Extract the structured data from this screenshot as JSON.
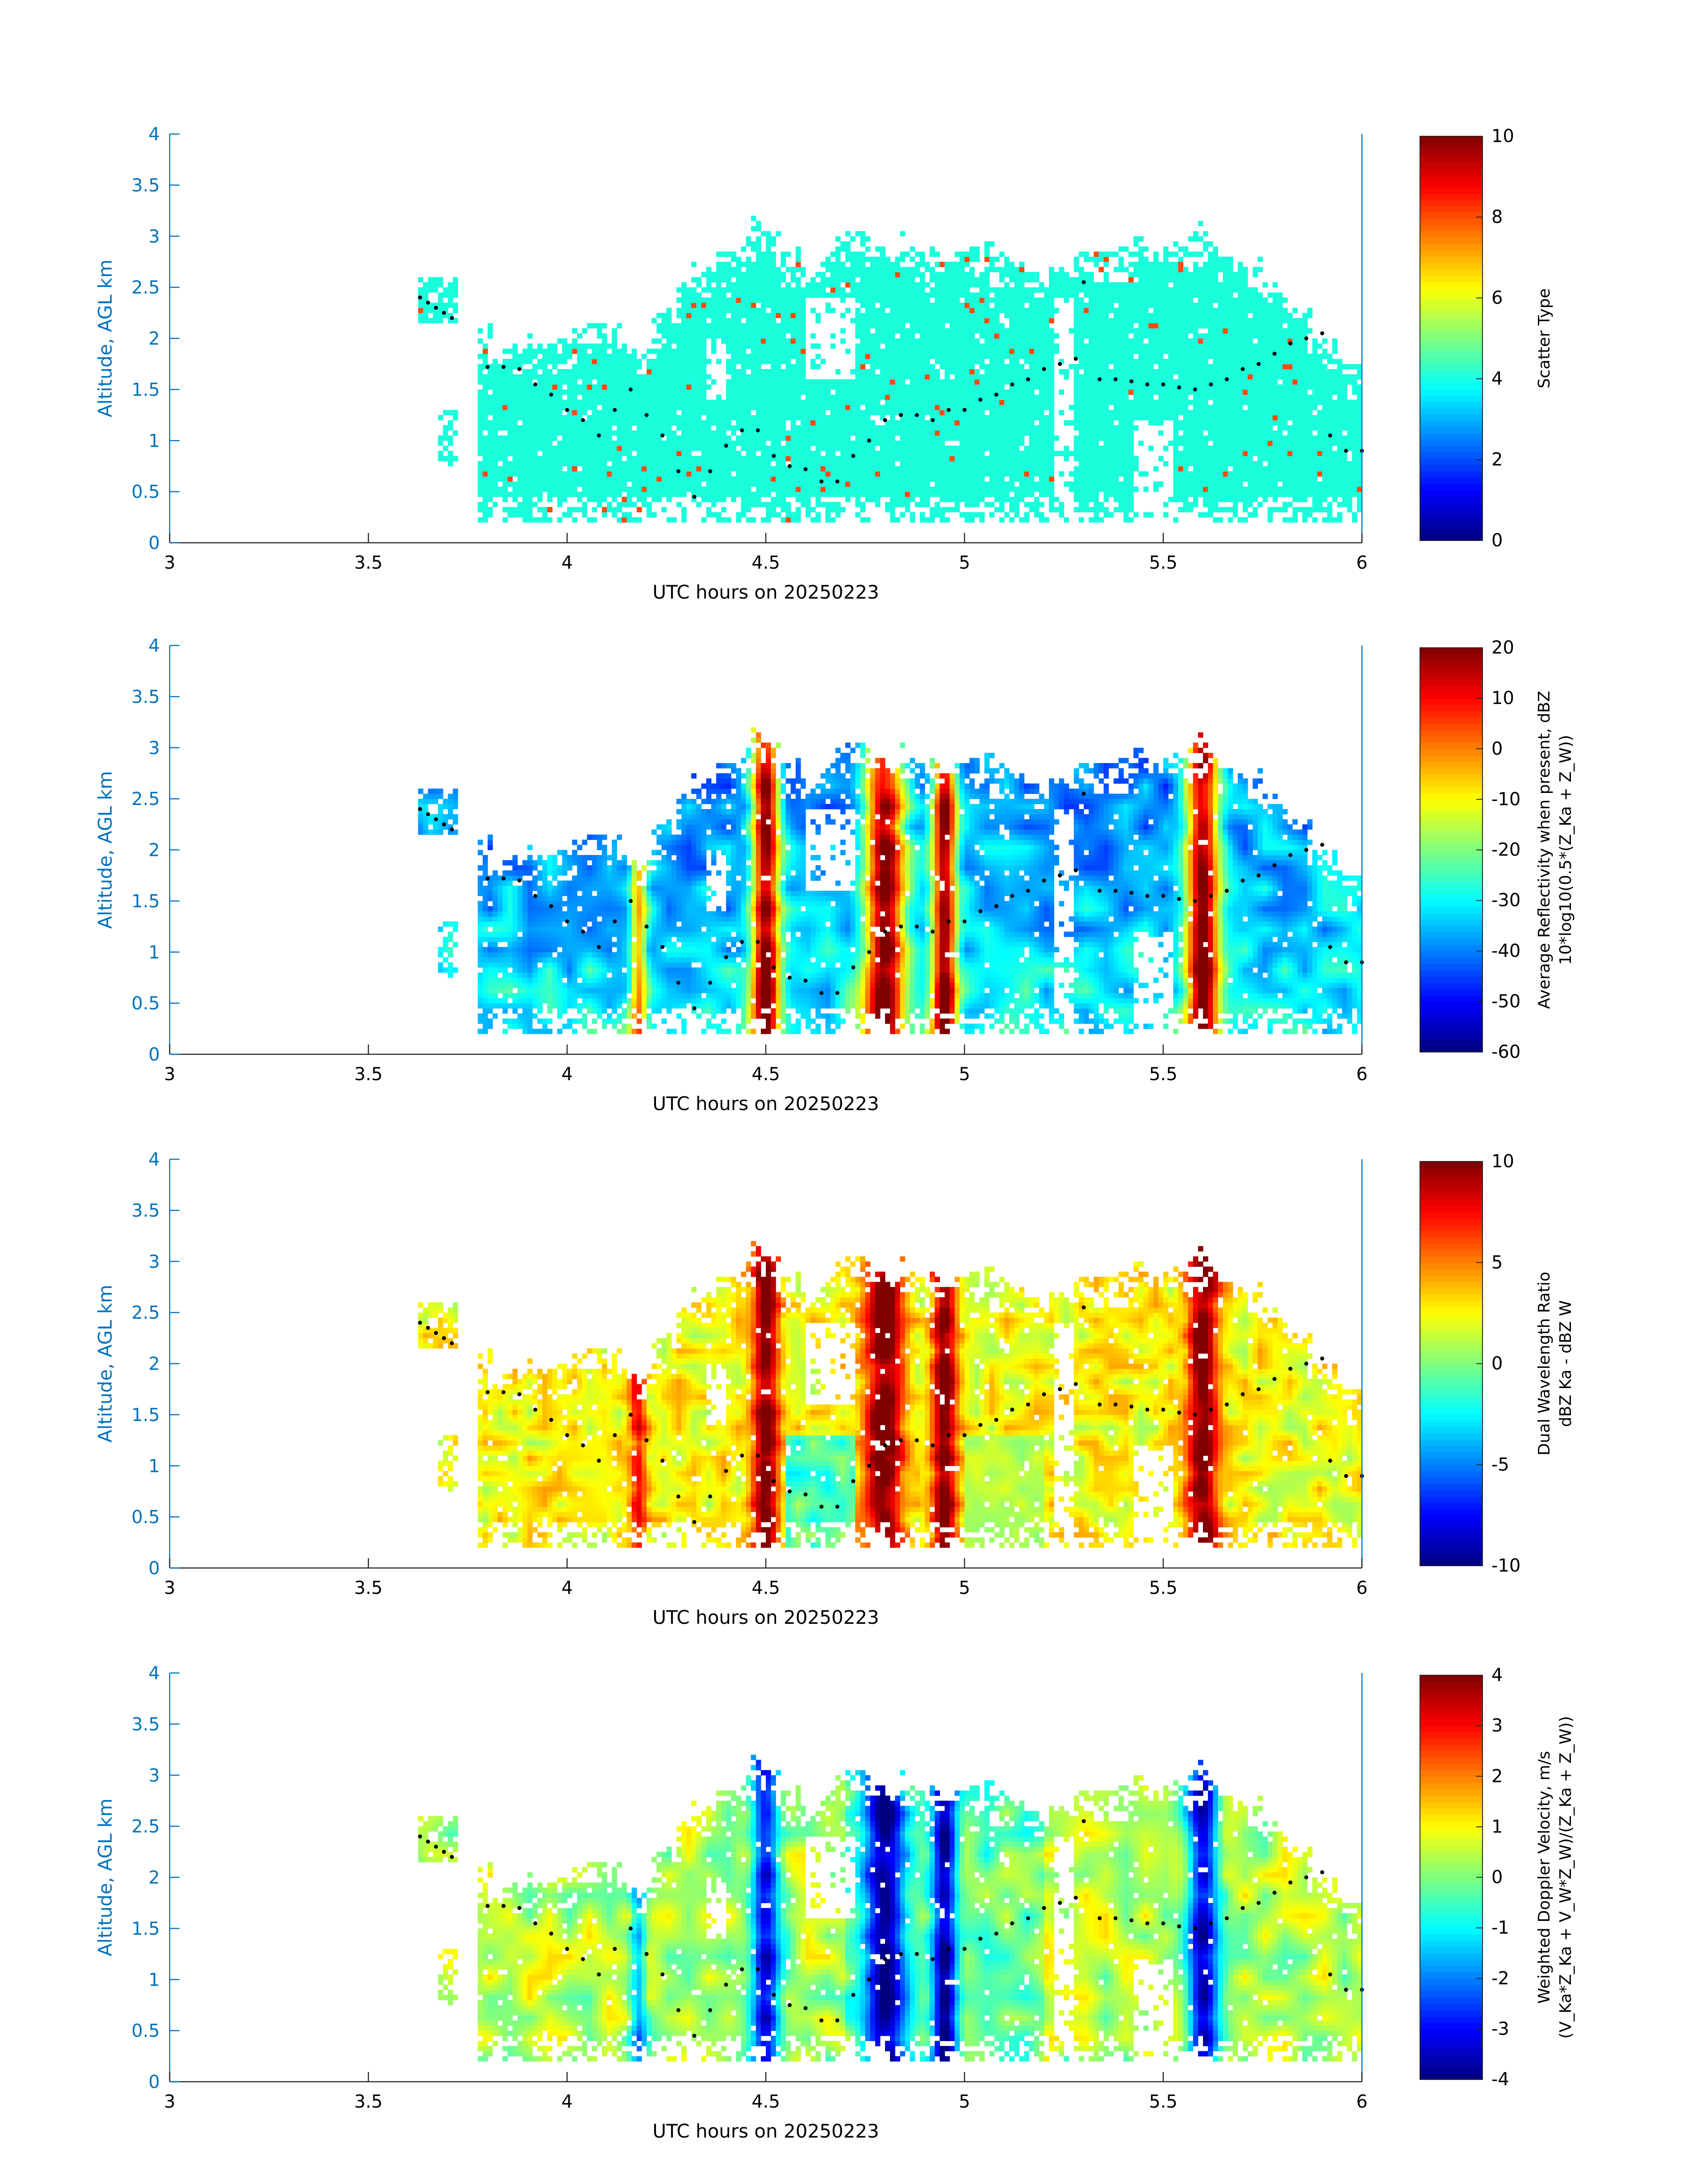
{
  "palette": {
    "axis_blue": "#0072BD",
    "cyan_region": "#19FFDC",
    "orange_blob": "#FF4A0A",
    "colormap": "jet",
    "dot": "#000000"
  },
  "figure": {
    "panels": [
      {
        "id": "scatter-type",
        "ylabel": "Altitude, AGL km",
        "xlabel": "UTC hours on 20250223",
        "xticks": [
          "3",
          "3.5",
          "4",
          "4.5",
          "5",
          "5.5",
          "6"
        ],
        "yticks": [
          "0",
          "0.5",
          "1",
          "1.5",
          "2",
          "2.5",
          "3",
          "3.5",
          "4"
        ],
        "colorbar": {
          "min": 0,
          "max": 10,
          "ticks": [
            "0",
            "2",
            "4",
            "6",
            "8",
            "10"
          ],
          "title": [
            "Scatter Type"
          ]
        }
      },
      {
        "id": "avg-reflectivity",
        "ylabel": "Altitude, AGL km",
        "xlabel": "UTC hours on 20250223",
        "xticks": [
          "3",
          "3.5",
          "4",
          "4.5",
          "5",
          "5.5",
          "6"
        ],
        "yticks": [
          "0",
          "0.5",
          "1",
          "1.5",
          "2",
          "2.5",
          "3",
          "3.5",
          "4"
        ],
        "colorbar": {
          "min": -60,
          "max": 20,
          "ticks": [
            "-60",
            "-50",
            "-40",
            "-30",
            "-20",
            "-10",
            "0",
            "10",
            "20"
          ],
          "title": [
            "Average Reflectivity when present, dBZ",
            "10*log10(0.5*(Z_Ka + Z_W))"
          ]
        }
      },
      {
        "id": "dual-wavelength-ratio",
        "ylabel": "Altitude, AGL km",
        "xlabel": "UTC hours on 20250223",
        "xticks": [
          "3",
          "3.5",
          "4",
          "4.5",
          "5",
          "5.5",
          "6"
        ],
        "yticks": [
          "0",
          "0.5",
          "1",
          "1.5",
          "2",
          "2.5",
          "3",
          "3.5",
          "4"
        ],
        "colorbar": {
          "min": -10,
          "max": 10,
          "ticks": [
            "-10",
            "-5",
            "0",
            "5",
            "10"
          ],
          "title": [
            "Dual Wavelength Ratio",
            "dBZ Ka - dBZ W"
          ]
        }
      },
      {
        "id": "weighted-doppler-velocity",
        "ylabel": "Altitude, AGL km",
        "xlabel": "UTC hours on 20250223",
        "xticks": [
          "3",
          "3.5",
          "4",
          "4.5",
          "5",
          "5.5",
          "6"
        ],
        "yticks": [
          "0",
          "0.5",
          "1",
          "1.5",
          "2",
          "2.5",
          "3",
          "3.5",
          "4"
        ],
        "colorbar": {
          "min": -4,
          "max": 4,
          "ticks": [
            "-4",
            "-3",
            "-2",
            "-1",
            "0",
            "1",
            "2",
            "3",
            "4"
          ],
          "title": [
            "Weighted Doppler Velocity, m/s",
            "(V_Ka*Z_Ka + V_W*Z_W)/(Z_Ka + Z_W))"
          ]
        }
      }
    ]
  },
  "chart_data": [
    {
      "type": "heatmap",
      "name": "Scatter Type",
      "xlabel": "UTC hours on 20250223",
      "ylabel": "Altitude, AGL km",
      "xlim": [
        3,
        6
      ],
      "ylim": [
        0,
        4
      ],
      "clim": [
        0,
        10
      ],
      "colorbar_label": "Scatter Type",
      "echo_top_profile_km": {
        "x": [
          3.62,
          3.7,
          3.8,
          3.9,
          4.0,
          4.1,
          4.2,
          4.3,
          4.4,
          4.5,
          4.6,
          4.7,
          4.8,
          4.9,
          5.0,
          5.1,
          5.2,
          5.3,
          5.4,
          5.5,
          5.6,
          5.7,
          5.8,
          5.9,
          6.0
        ],
        "y": [
          2.55,
          2.35,
          2.0,
          2.0,
          1.95,
          2.15,
          2.0,
          2.6,
          2.9,
          3.15,
          2.7,
          3.0,
          3.0,
          2.85,
          2.85,
          2.85,
          2.7,
          2.8,
          2.9,
          2.95,
          3.05,
          2.8,
          2.5,
          2.0,
          1.8
        ]
      },
      "dominant_value": 4.2,
      "secondary_value": 9.0
    },
    {
      "type": "heatmap",
      "name": "Average Reflectivity when present, dBZ",
      "xlabel": "UTC hours on 20250223",
      "ylabel": "Altitude, AGL km",
      "xlim": [
        3,
        6
      ],
      "ylim": [
        0,
        4
      ],
      "clim": [
        -60,
        20
      ],
      "colorbar_label": "Average Reflectivity when present, dBZ 10*log10(0.5*(Z_Ka + Z_W))",
      "core_maxima": [
        {
          "x": 4.5,
          "value": 15
        },
        {
          "x": 4.8,
          "value": 12
        },
        {
          "x": 4.95,
          "value": 10
        },
        {
          "x": 5.6,
          "value": 10
        },
        {
          "x": 4.18,
          "value": 3
        }
      ]
    },
    {
      "type": "heatmap",
      "name": "Dual Wavelength Ratio",
      "xlabel": "UTC hours on 20250223",
      "ylabel": "Altitude, AGL km",
      "xlim": [
        3,
        6
      ],
      "ylim": [
        0,
        4
      ],
      "clim": [
        -10,
        10
      ],
      "colorbar_label": "Dual Wavelength Ratio dBZ Ka - dBZ W",
      "core_maxima": [
        {
          "x": 4.5,
          "value": 10
        },
        {
          "x": 4.8,
          "value": 10
        },
        {
          "x": 4.95,
          "value": 9
        },
        {
          "x": 5.6,
          "value": 8
        }
      ],
      "background_value": 3
    },
    {
      "type": "heatmap",
      "name": "Weighted Doppler Velocity, m/s",
      "xlabel": "UTC hours on 20250223",
      "ylabel": "Altitude, AGL km",
      "xlim": [
        3,
        6
      ],
      "ylim": [
        0,
        4
      ],
      "clim": [
        -4,
        4
      ],
      "colorbar_label": "Weighted Doppler Velocity, m/s (V_Ka*Z_Ka + V_W*Z_W)/(Z_Ka + Z_W))",
      "core_minima": [
        {
          "x": 4.5,
          "value": -3.5
        },
        {
          "x": 4.8,
          "value": -3.0
        },
        {
          "x": 4.95,
          "value": -2.7
        },
        {
          "x": 5.6,
          "value": -2.5
        }
      ],
      "background_value": 0.5
    }
  ],
  "overlay_dots_km": {
    "x": [
      3.63,
      3.65,
      3.67,
      3.69,
      3.71,
      3.8,
      3.84,
      3.88,
      3.92,
      3.96,
      4.0,
      4.04,
      4.08,
      4.12,
      4.16,
      4.2,
      4.24,
      4.28,
      4.32,
      4.36,
      4.4,
      4.44,
      4.48,
      4.52,
      4.56,
      4.6,
      4.64,
      4.68,
      4.72,
      4.76,
      4.8,
      4.84,
      4.88,
      4.92,
      4.96,
      5.0,
      5.04,
      5.08,
      5.12,
      5.16,
      5.2,
      5.24,
      5.28,
      5.3,
      5.34,
      5.38,
      5.42,
      5.46,
      5.5,
      5.54,
      5.58,
      5.62,
      5.66,
      5.7,
      5.74,
      5.78,
      5.82,
      5.86,
      5.9,
      5.92,
      5.96,
      6.0
    ],
    "y": [
      2.4,
      2.35,
      2.3,
      2.25,
      2.2,
      1.72,
      1.72,
      1.7,
      1.55,
      1.45,
      1.3,
      1.2,
      1.05,
      1.3,
      1.5,
      1.25,
      1.05,
      0.7,
      0.45,
      0.7,
      0.95,
      1.1,
      1.1,
      0.85,
      0.75,
      0.72,
      0.6,
      0.6,
      0.85,
      1.0,
      1.2,
      1.25,
      1.25,
      1.2,
      1.3,
      1.3,
      1.4,
      1.45,
      1.55,
      1.6,
      1.7,
      1.75,
      1.8,
      2.55,
      1.6,
      1.6,
      1.58,
      1.55,
      1.55,
      1.52,
      1.5,
      1.55,
      1.6,
      1.7,
      1.75,
      1.85,
      1.95,
      2.0,
      2.05,
      1.05,
      0.9,
      0.9
    ]
  }
}
